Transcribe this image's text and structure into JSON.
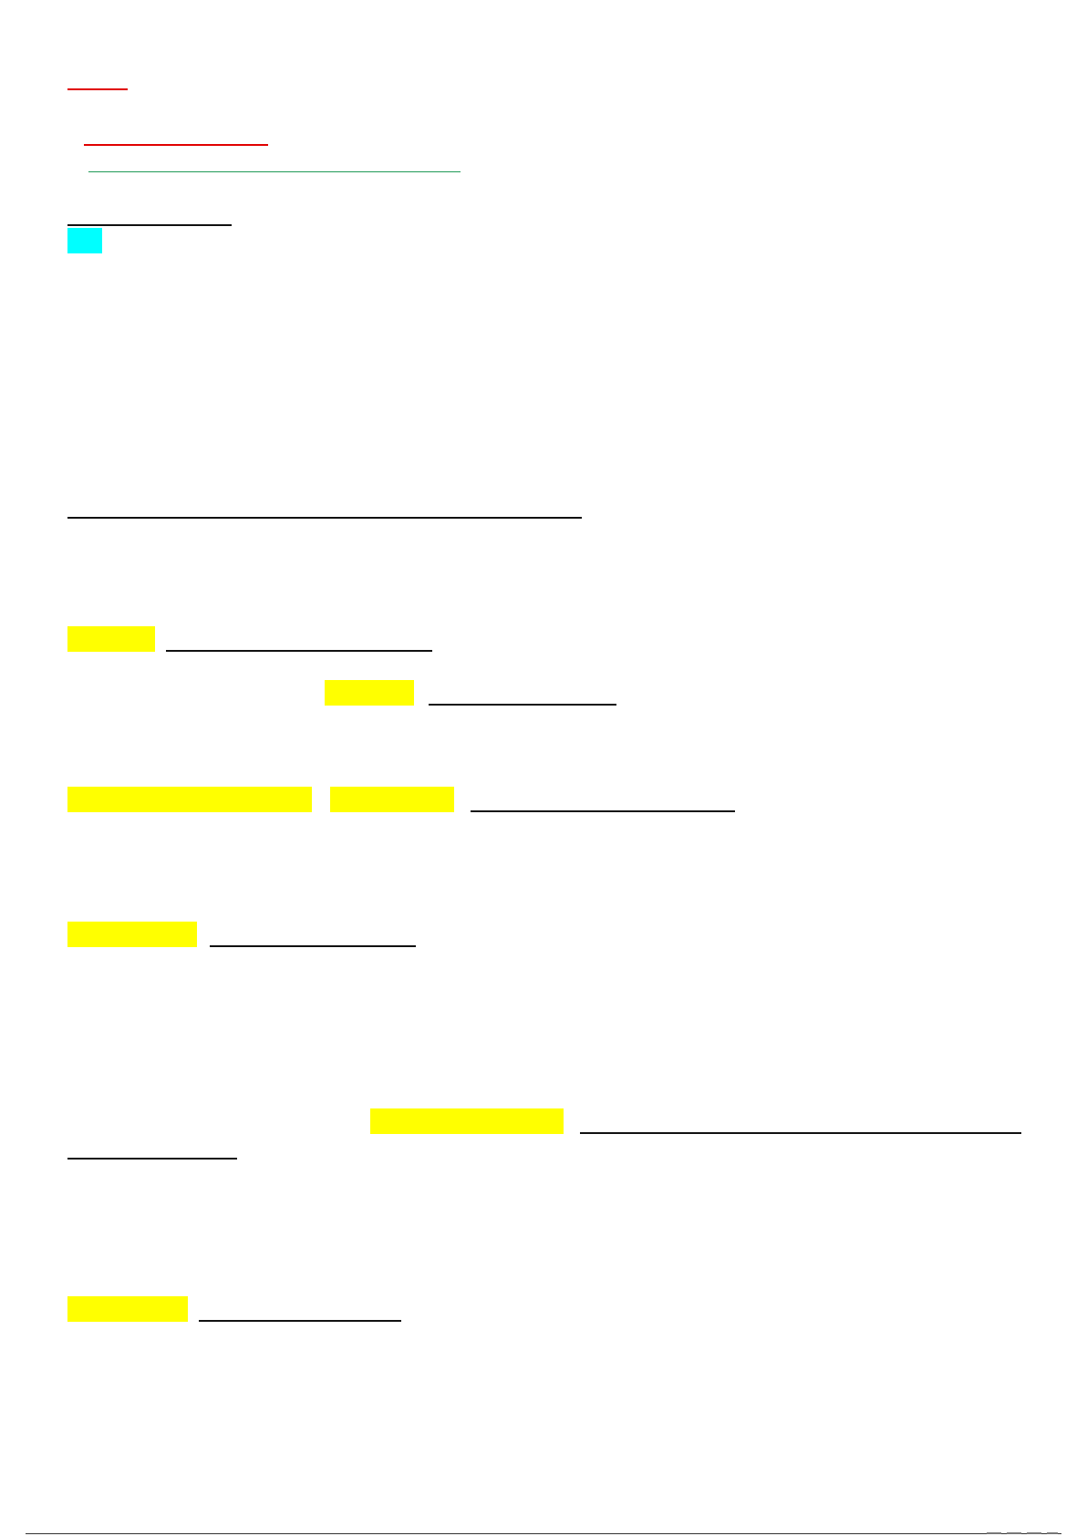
{
  "page": {
    "background": "#ffffff",
    "content_visible": false
  },
  "colors": {
    "link_red": "#e00000",
    "link_green": "#1f9a57",
    "underline_black": "#111111",
    "highlight_yellow": "#ffff00",
    "highlight_cyan": "#00ffff"
  }
}
